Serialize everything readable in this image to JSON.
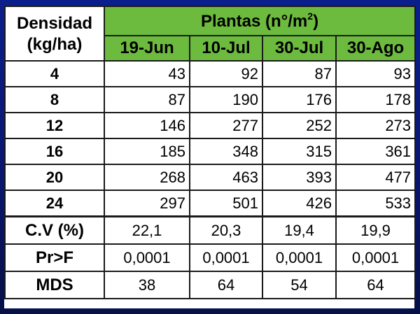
{
  "header": {
    "corner_line1": "Densidad",
    "corner_line2": "(kg/ha)",
    "group_title": "Plantas (n°/m",
    "group_title_sup": "2",
    "group_title_end": ")",
    "dates": [
      "19-Jun",
      "10-Jul",
      "30-Jul",
      "30-Ago"
    ]
  },
  "rows": [
    {
      "densidad": "4",
      "values": [
        "43",
        "92",
        "87",
        "93"
      ]
    },
    {
      "densidad": "8",
      "values": [
        "87",
        "190",
        "176",
        "178"
      ]
    },
    {
      "densidad": "12",
      "values": [
        "146",
        "277",
        "252",
        "273"
      ]
    },
    {
      "densidad": "16",
      "values": [
        "185",
        "348",
        "315",
        "361"
      ]
    },
    {
      "densidad": "20",
      "values": [
        "268",
        "463",
        "393",
        "477"
      ]
    },
    {
      "densidad": "24",
      "values": [
        "297",
        "501",
        "426",
        "533"
      ]
    }
  ],
  "stats": [
    {
      "label": "C.V (%)",
      "values": [
        "22,1",
        "20,3",
        "19,4",
        "19,9"
      ]
    },
    {
      "label": "Pr>F",
      "values": [
        "0,0001",
        "0,0001",
        "0,0001",
        "0,0001"
      ]
    },
    {
      "label": "MDS",
      "values": [
        "38",
        "64",
        "54",
        "64"
      ]
    }
  ],
  "colors": {
    "header_green": "#6dbb3e",
    "background_blue": "#0b1f8c",
    "border": "#1a1a1a"
  }
}
